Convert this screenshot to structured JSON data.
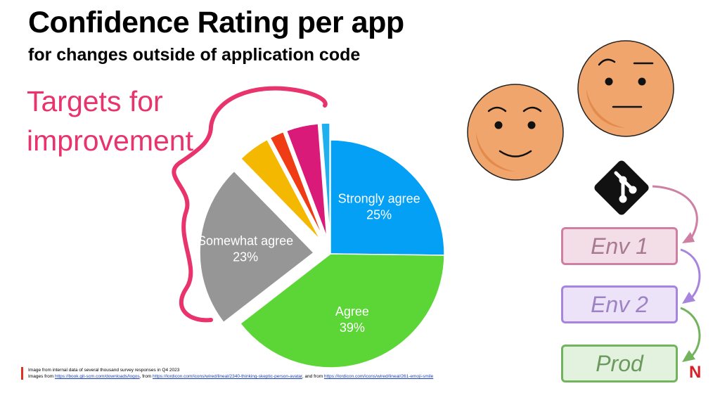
{
  "header": {
    "title": "Confidence Rating per app",
    "subtitle": "for changes outside of application code",
    "callout": "Targets for improvement"
  },
  "chart_data": {
    "type": "pie",
    "slices": [
      {
        "label": "Strongly agree",
        "pct_label": "25%",
        "value": 25,
        "color": "#03a0f5",
        "exploded": false
      },
      {
        "label": "Agree",
        "pct_label": "39%",
        "value": 39,
        "color": "#5bd636",
        "exploded": false
      },
      {
        "label": "Somewhat agree",
        "pct_label": "23%",
        "value": 23,
        "color": "#969696",
        "exploded": true
      },
      {
        "label": "",
        "pct_label": "",
        "value": 4.5,
        "color": "#f5b800",
        "exploded": true
      },
      {
        "label": "",
        "pct_label": "",
        "value": 2,
        "color": "#f03c14",
        "exploded": true
      },
      {
        "label": "",
        "pct_label": "",
        "value": 4.5,
        "color": "#d91a78",
        "exploded": true
      },
      {
        "label": "",
        "pct_label": "",
        "value": 1.2,
        "color": "#20b0f0",
        "exploded": true
      }
    ]
  },
  "pipeline": {
    "stages": [
      {
        "label": "Env 1",
        "fill": "#f3dde7",
        "border": "#cf7fa3",
        "text": "#a77a90"
      },
      {
        "label": "Env 2",
        "fill": "#ece3f8",
        "border": "#a784dd",
        "text": "#9d82c6"
      },
      {
        "label": "Prod",
        "fill": "#e3f2df",
        "border": "#73b35e",
        "text": "#6c9a5e"
      }
    ],
    "prod_badge": "N"
  },
  "footer": {
    "line1": "Image from internal data of several thousand survey responses in Q4 2023",
    "line2_prefix": "Images from ",
    "link1": "https://book.git-scm.com/downloads/logos",
    "sep1": ", from ",
    "link2": "https://lordicon.com/icons/wired/lineal/2340-thinking-skeptic-person-avatar",
    "sep2": ", and from ",
    "link3": "https://lordicon.com/icons/wired/lineal/261-emoji-smile"
  },
  "icons": {
    "git": "git-logo-icon",
    "smile": "smile-emoji-icon",
    "skeptic": "skeptic-emoji-icon"
  }
}
